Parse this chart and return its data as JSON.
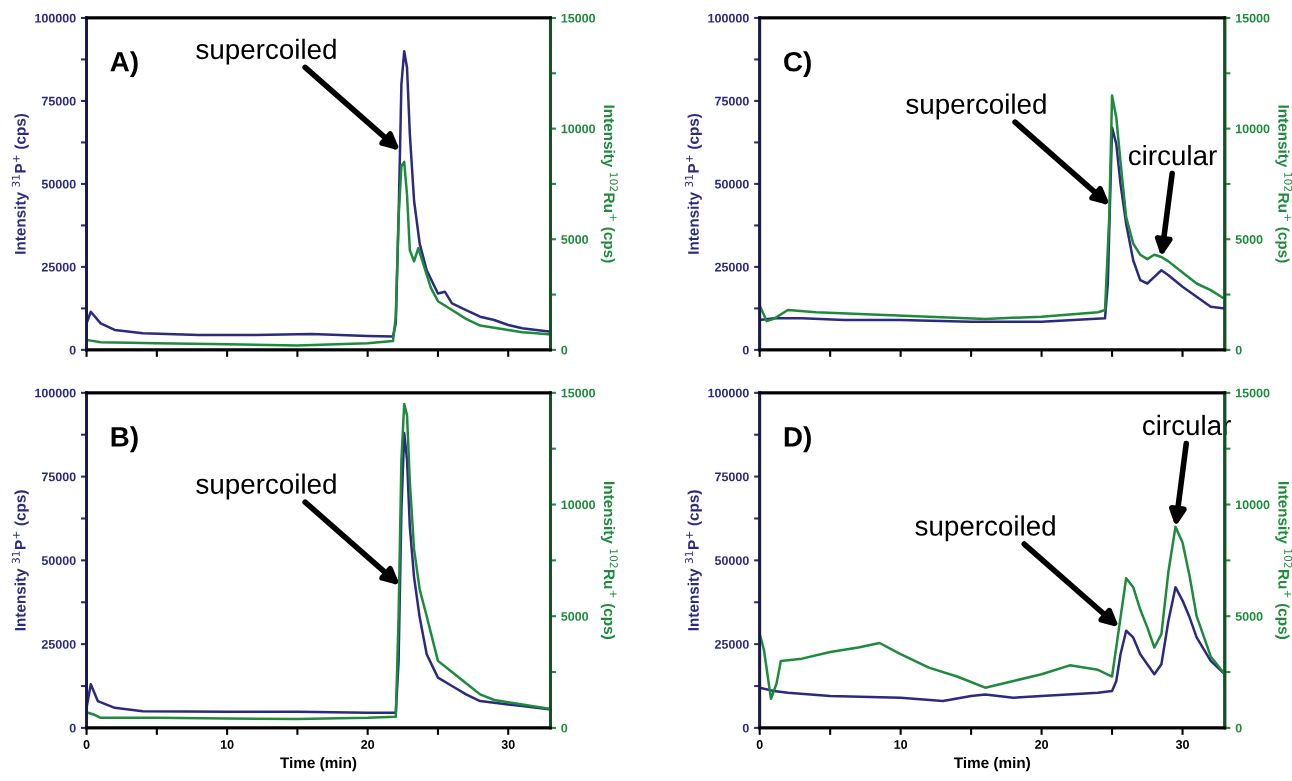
{
  "chart_data": [
    {
      "type": "line",
      "xlim": [
        0,
        33
      ],
      "xticks": [
        {
          "value": 0,
          "label": null
        },
        {
          "value": 5,
          "label": null
        },
        {
          "value": 10,
          "label": null
        },
        {
          "value": 15,
          "label": null
        },
        {
          "value": 20,
          "label": null
        },
        {
          "value": 25,
          "label": null
        },
        {
          "value": 30,
          "label": null
        }
      ],
      "ylim": [
        0,
        100000
      ],
      "yticks": [
        0,
        {
          "value": 12500,
          "label": null
        },
        25000,
        {
          "value": 37500,
          "label": null
        },
        50000,
        {
          "value": 62500,
          "label": null
        },
        75000,
        {
          "value": 87500,
          "label": null
        },
        100000
      ],
      "y2lim": [
        0,
        15000
      ],
      "y2ticks": [
        0,
        {
          "value": 2500,
          "label": null
        },
        5000,
        {
          "value": 7500,
          "label": null
        },
        10000,
        {
          "value": 12500,
          "label": null
        },
        15000
      ],
      "ylabel": "Intensity $^{31}$P$^{+}$ (cps)",
      "y2label": "Intensity $^{102}$Ru$^{+}$ (cps)",
      "grid": false,
      "legend": false,
      "marker": "none",
      "line_style": "solid",
      "tick_labels": "y",
      "annotations": [
        "A)",
        {
          "text": "supercoiled",
          "x": 22.3,
          "y": 60000
        }
      ],
      "series": [
        {
          "color": "#2b2a7e",
          "x": [
            0,
            0.3,
            1,
            2,
            4,
            8,
            12,
            16,
            20,
            21.8,
            22.0,
            22.2,
            22.3,
            22.4,
            22.6,
            22.8,
            23.0,
            23.3,
            23.7,
            24.2,
            25,
            25.5,
            26,
            27,
            28,
            29,
            30,
            31,
            32,
            33
          ],
          "values": [
            8000,
            11500,
            8000,
            6000,
            5000,
            4500,
            4500,
            4800,
            4200,
            4000,
            8000,
            40000,
            60000,
            80000,
            90000,
            85000,
            65000,
            45000,
            32000,
            24000,
            17000,
            17500,
            14000,
            12000,
            10000,
            9000,
            7500,
            6500,
            6000,
            5500
          ]
        },
        {
          "color": "#1e8a3c",
          "axis": "y2",
          "x": [
            0,
            1,
            5,
            10,
            15,
            20,
            21.8,
            22.0,
            22.2,
            22.4,
            22.6,
            22.8,
            23.0,
            23.3,
            23.6,
            24,
            24.5,
            25,
            26,
            27,
            28,
            29,
            30,
            31,
            32,
            33
          ],
          "values": [
            450,
            350,
            300,
            250,
            200,
            300,
            400,
            1500,
            6000,
            8300,
            8500,
            7000,
            4500,
            4000,
            4600,
            3800,
            2800,
            2200,
            1800,
            1400,
            1100,
            1000,
            900,
            800,
            750,
            700
          ]
        }
      ]
    },
    {
      "type": "line",
      "xlim": [
        0,
        33
      ],
      "xticks": [
        {
          "value": 0,
          "label": null
        },
        {
          "value": 5,
          "label": null
        },
        {
          "value": 10,
          "label": null
        },
        {
          "value": 15,
          "label": null
        },
        {
          "value": 20,
          "label": null
        },
        {
          "value": 25,
          "label": null
        },
        {
          "value": 30,
          "label": null
        }
      ],
      "ylim": [
        0,
        100000
      ],
      "yticks": [
        0,
        {
          "value": 12500,
          "label": null
        },
        25000,
        {
          "value": 37500,
          "label": null
        },
        50000,
        {
          "value": 62500,
          "label": null
        },
        75000,
        {
          "value": 87500,
          "label": null
        },
        100000
      ],
      "y2lim": [
        0,
        15000
      ],
      "y2ticks": [
        0,
        {
          "value": 2500,
          "label": null
        },
        5000,
        {
          "value": 7500,
          "label": null
        },
        10000,
        {
          "value": 12500,
          "label": null
        },
        15000
      ],
      "ylabel": "Intensity $^{31}$P$^{+}$ (cps)",
      "y2label": "Intensity $^{102}$Ru$^{+}$ (cps)",
      "grid": false,
      "legend": false,
      "marker": "none",
      "line_style": "solid",
      "tick_labels": "y",
      "annotations": [
        "C)",
        {
          "text": "supercoiled",
          "x": 24.85,
          "y": 43500
        },
        {
          "text": "circular",
          "x": 28.5,
          "y": 28000
        }
      ],
      "series": [
        {
          "color": "#2b2a7e",
          "x": [
            0,
            1,
            3,
            6,
            10,
            15,
            20,
            24.5,
            24.7,
            24.85,
            25.0,
            25.3,
            25.6,
            26,
            26.5,
            27,
            27.5,
            28,
            28.5,
            29,
            30,
            31,
            32,
            33
          ],
          "values": [
            9000,
            9500,
            9500,
            9000,
            9000,
            8500,
            8500,
            9500,
            20000,
            43500,
            67000,
            62000,
            50000,
            38000,
            27000,
            21000,
            20000,
            22000,
            24000,
            22500,
            19000,
            16000,
            13000,
            12500
          ]
        },
        {
          "color": "#1e8a3c",
          "axis": "y2",
          "x": [
            0,
            0.5,
            1,
            2,
            4,
            8,
            12,
            16,
            20,
            24,
            24.5,
            24.8,
            25.0,
            25.3,
            25.6,
            26,
            26.5,
            27,
            27.5,
            28,
            28.5,
            29,
            30,
            31,
            32,
            33
          ],
          "values": [
            2000,
            1300,
            1400,
            1800,
            1700,
            1600,
            1500,
            1400,
            1500,
            1700,
            1800,
            6000,
            11500,
            10500,
            8500,
            6000,
            4800,
            4300,
            4100,
            4300,
            4200,
            4000,
            3500,
            3000,
            2700,
            2300
          ]
        }
      ]
    },
    {
      "type": "line",
      "xlim": [
        0,
        33
      ],
      "xticks": [
        0,
        {
          "value": 5,
          "label": null
        },
        10,
        {
          "value": 15,
          "label": null
        },
        20,
        {
          "value": 25,
          "label": null
        },
        30
      ],
      "ylim": [
        0,
        100000
      ],
      "yticks": [
        0,
        {
          "value": 12500,
          "label": null
        },
        25000,
        {
          "value": 37500,
          "label": null
        },
        50000,
        {
          "value": 62500,
          "label": null
        },
        75000,
        {
          "value": 87500,
          "label": null
        },
        100000
      ],
      "y2lim": [
        0,
        15000
      ],
      "y2ticks": [
        0,
        {
          "value": 2500,
          "label": null
        },
        5000,
        {
          "value": 7500,
          "label": null
        },
        10000,
        {
          "value": 12500,
          "label": null
        },
        15000
      ],
      "xlabel": "Time (min)",
      "ylabel": "Intensity $^{31}$P$^{+}$ (cps)",
      "y2label": "Intensity $^{102}$Ru$^{+}$ (cps)",
      "grid": false,
      "legend": false,
      "marker": "none",
      "line_style": "solid",
      "annotations": [
        "B)",
        {
          "text": "supercoiled",
          "x": 22.3,
          "y": 42500
        }
      ],
      "series": [
        {
          "color": "#2b2a7e",
          "x": [
            0,
            0.3,
            0.8,
            2,
            4,
            10,
            15,
            20,
            22.0,
            22.2,
            22.3,
            22.4,
            22.6,
            22.8,
            23.0,
            23.3,
            23.7,
            24.2,
            25,
            26,
            27,
            28,
            29,
            30,
            31,
            32,
            33
          ],
          "values": [
            6000,
            13000,
            8000,
            6000,
            5000,
            4800,
            4800,
            4500,
            4500,
            20000,
            42500,
            65000,
            88000,
            80000,
            60000,
            45000,
            33000,
            22000,
            15000,
            12500,
            10000,
            8000,
            7500,
            7000,
            6500,
            6000,
            5500
          ]
        },
        {
          "color": "#1e8a3c",
          "axis": "y2",
          "x": [
            0,
            0.5,
            1,
            5,
            10,
            15,
            20,
            22.0,
            22.2,
            22.4,
            22.6,
            22.8,
            23.0,
            23.3,
            23.7,
            24.2,
            25,
            26,
            27,
            28,
            29,
            30,
            31,
            32,
            33
          ],
          "values": [
            700,
            600,
            450,
            450,
            420,
            400,
            450,
            500,
            5000,
            12000,
            14500,
            14000,
            11000,
            8000,
            6200,
            5000,
            3000,
            2500,
            2000,
            1500,
            1250,
            1150,
            1050,
            950,
            850
          ]
        }
      ]
    },
    {
      "type": "line",
      "xlim": [
        0,
        33
      ],
      "xticks": [
        0,
        {
          "value": 5,
          "label": null
        },
        10,
        {
          "value": 15,
          "label": null
        },
        20,
        {
          "value": 25,
          "label": null
        },
        30
      ],
      "ylim": [
        0,
        100000
      ],
      "yticks": [
        0,
        {
          "value": 12500,
          "label": null
        },
        25000,
        {
          "value": 37500,
          "label": null
        },
        50000,
        {
          "value": 62500,
          "label": null
        },
        75000,
        {
          "value": 87500,
          "label": null
        },
        100000
      ],
      "y2lim": [
        0,
        15000
      ],
      "y2ticks": [
        0,
        {
          "value": 2500,
          "label": null
        },
        5000,
        {
          "value": 7500,
          "label": null
        },
        10000,
        {
          "value": 12500,
          "label": null
        },
        15000
      ],
      "xlabel": "Time (min)",
      "ylabel": "Intensity $^{31}$P$^{+}$ (cps)",
      "y2label": "Intensity $^{102}$Ru$^{+}$ (cps)",
      "grid": false,
      "legend": false,
      "marker": "none",
      "line_style": "solid",
      "annotations": [
        "D)",
        {
          "text": "supercoiled",
          "x": 25.5,
          "y": 30000
        },
        {
          "text": "circular",
          "x": 29.5,
          "y": 60000
        }
      ],
      "series": [
        {
          "color": "#2b2a7e",
          "x": [
            0,
            1,
            2,
            5,
            10,
            13,
            15,
            16,
            18,
            20,
            24,
            25,
            25.3,
            25.6,
            26,
            26.5,
            27,
            27.5,
            28,
            28.5,
            29,
            29.5,
            30,
            30.5,
            31,
            32,
            33
          ],
          "values": [
            12000,
            11000,
            10500,
            9500,
            9000,
            8000,
            9500,
            10000,
            9000,
            9500,
            10500,
            11000,
            14000,
            22000,
            29000,
            27000,
            22000,
            19000,
            16000,
            19000,
            32000,
            42000,
            38000,
            33000,
            27000,
            20000,
            16000
          ]
        },
        {
          "color": "#1e8a3c",
          "axis": "y2",
          "x": [
            0,
            0.3,
            0.8,
            1.2,
            1.5,
            3,
            5,
            7,
            8.5,
            10,
            12,
            14,
            16,
            18,
            20,
            22,
            24,
            25,
            25.5,
            26,
            26.5,
            27,
            27.5,
            28,
            28.5,
            29,
            29.5,
            30,
            30.5,
            31,
            32,
            33
          ],
          "values": [
            4200,
            3500,
            1300,
            2000,
            3000,
            3100,
            3400,
            3600,
            3800,
            3300,
            2700,
            2300,
            1800,
            2100,
            2400,
            2800,
            2600,
            2300,
            4500,
            6700,
            6300,
            5300,
            4500,
            3600,
            4200,
            7000,
            9000,
            8300,
            6800,
            5000,
            3200,
            2400
          ]
        }
      ]
    }
  ]
}
